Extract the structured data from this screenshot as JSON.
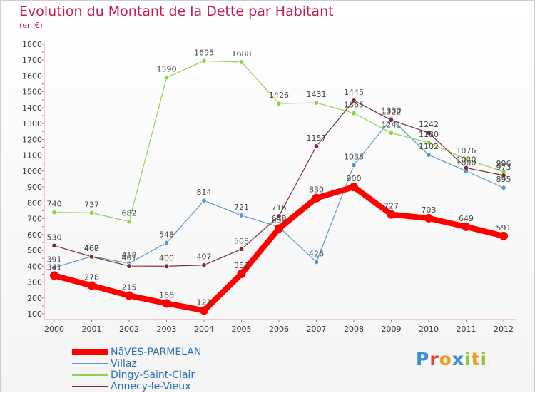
{
  "chart_data": {
    "type": "line",
    "title": "Evolution du Montant de la Dette par Habitant",
    "subtitle": "(en €)",
    "categories": [
      "2000",
      "2001",
      "2002",
      "2003",
      "2004",
      "2005",
      "2006",
      "2007",
      "2008",
      "2009",
      "2010",
      "2011",
      "2012"
    ],
    "ylim": [
      100,
      1800
    ],
    "yticks": [
      100,
      200,
      300,
      400,
      500,
      600,
      700,
      800,
      900,
      1000,
      1100,
      1200,
      1300,
      1400,
      1500,
      1600,
      1700,
      1800
    ],
    "grid": false,
    "legend_position": "bottom-left",
    "series": [
      {
        "name": "NäVES-PARMELAN",
        "color": "#ff0000",
        "width": 8,
        "show_markers": false,
        "values": [
          341,
          278,
          215,
          166,
          121,
          352,
          638,
          830,
          900,
          727,
          703,
          649,
          591
        ]
      },
      {
        "name": "Villaz",
        "color": "#5b96c8",
        "width": 1.2,
        "show_markers": true,
        "values": [
          391,
          462,
          418,
          548,
          814,
          721,
          648,
          426,
          1038,
          1330,
          1102,
          1000,
          895
        ]
      },
      {
        "name": "Dingy-Saint-Clair",
        "color": "#8fd14f",
        "width": 1.2,
        "show_markers": true,
        "values": [
          740,
          737,
          682,
          1590,
          1695,
          1688,
          1426,
          1431,
          1365,
          1241,
          1180,
          1076,
          996
        ]
      },
      {
        "name": "Annecy-le-Vieux",
        "color": "#7a2b2b",
        "width": 1.2,
        "show_markers": true,
        "values": [
          530,
          460,
          401,
          400,
          407,
          508,
          716,
          1157,
          1445,
          1322,
          1242,
          1020,
          973
        ]
      }
    ]
  },
  "logo": {
    "letters": [
      "P",
      "r",
      "o",
      "x",
      "i",
      "t",
      "i"
    ],
    "colors": [
      "#3a8ed8",
      "#e8402f",
      "#f39a1c",
      "#3a8ed8",
      "#8cc63f",
      "#f39a1c",
      "#8cc63f"
    ]
  }
}
